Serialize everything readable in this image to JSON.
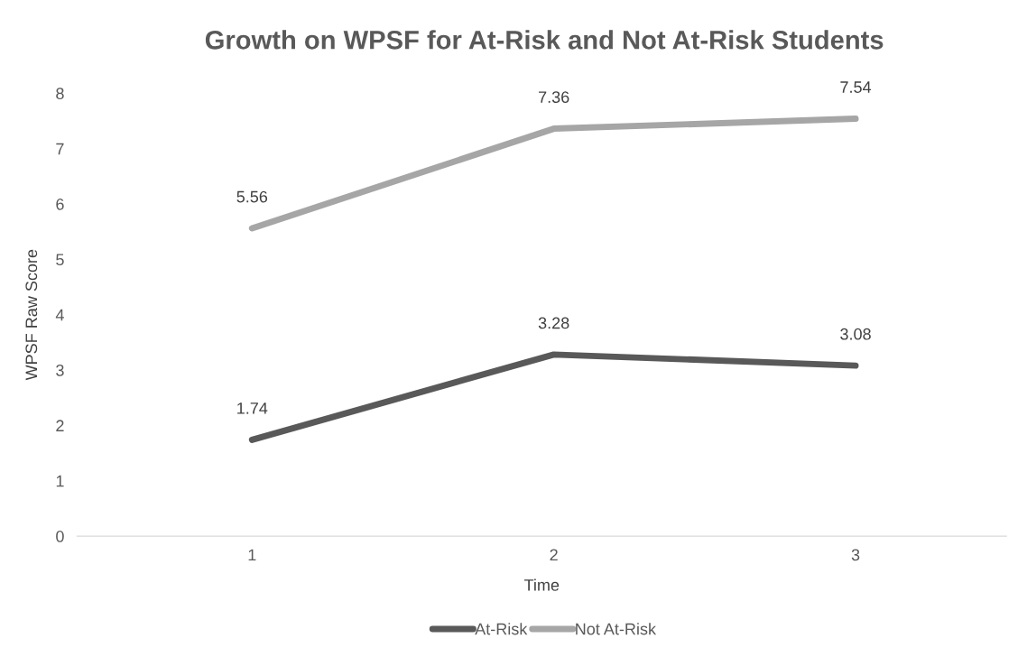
{
  "chart_data": {
    "type": "line",
    "title": "Growth on WPSF for At-Risk and Not At-Risk Students",
    "xlabel": "Time",
    "ylabel": "WPSF Raw Score",
    "categories": [
      "1",
      "2",
      "3"
    ],
    "series": [
      {
        "name": "At-Risk",
        "color": "#595959",
        "values": [
          1.74,
          3.28,
          3.08
        ]
      },
      {
        "name": "Not At-Risk",
        "color": "#a6a6a6",
        "values": [
          5.56,
          7.36,
          7.54
        ]
      }
    ],
    "ylim": [
      0,
      8
    ],
    "yticks": [
      0,
      1,
      2,
      3,
      4,
      5,
      6,
      7,
      8
    ],
    "grid": false,
    "legend": "bottom",
    "data_labels": true,
    "marker": "none",
    "line_style": "solid"
  }
}
